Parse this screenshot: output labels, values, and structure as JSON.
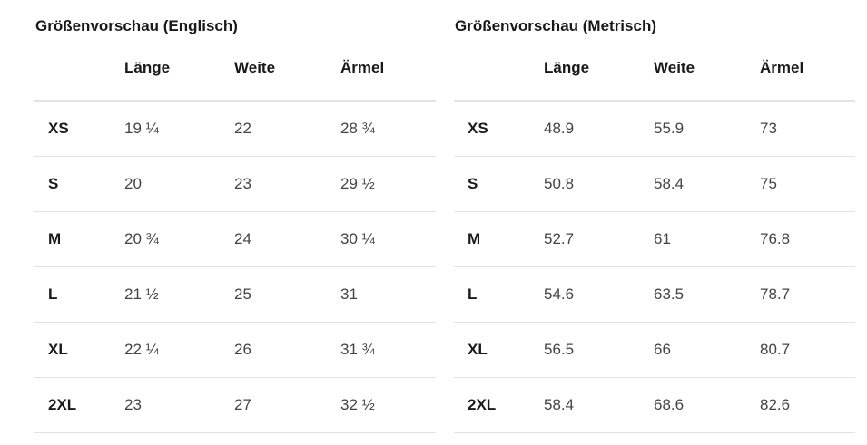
{
  "tables": [
    {
      "title": "Größenvorschau (Englisch)",
      "headers": [
        "",
        "Länge",
        "Weite",
        "Ärmel"
      ],
      "rows": [
        [
          "XS",
          "19 ¼",
          "22",
          "28 ¾"
        ],
        [
          "S",
          "20",
          "23",
          "29 ½"
        ],
        [
          "M",
          "20 ¾",
          "24",
          "30 ¼"
        ],
        [
          "L",
          "21 ½",
          "25",
          "31"
        ],
        [
          "XL",
          "22 ¼",
          "26",
          "31 ¾"
        ],
        [
          "2XL",
          "23",
          "27",
          "32 ½"
        ]
      ]
    },
    {
      "title": "Größenvorschau (Metrisch)",
      "headers": [
        "",
        "Länge",
        "Weite",
        "Ärmel"
      ],
      "rows": [
        [
          "XS",
          "48.9",
          "55.9",
          "73"
        ],
        [
          "S",
          "50.8",
          "58.4",
          "75"
        ],
        [
          "M",
          "52.7",
          "61",
          "76.8"
        ],
        [
          "L",
          "54.6",
          "63.5",
          "78.7"
        ],
        [
          "XL",
          "56.5",
          "66",
          "80.7"
        ],
        [
          "2XL",
          "58.4",
          "68.6",
          "82.6"
        ]
      ]
    }
  ]
}
